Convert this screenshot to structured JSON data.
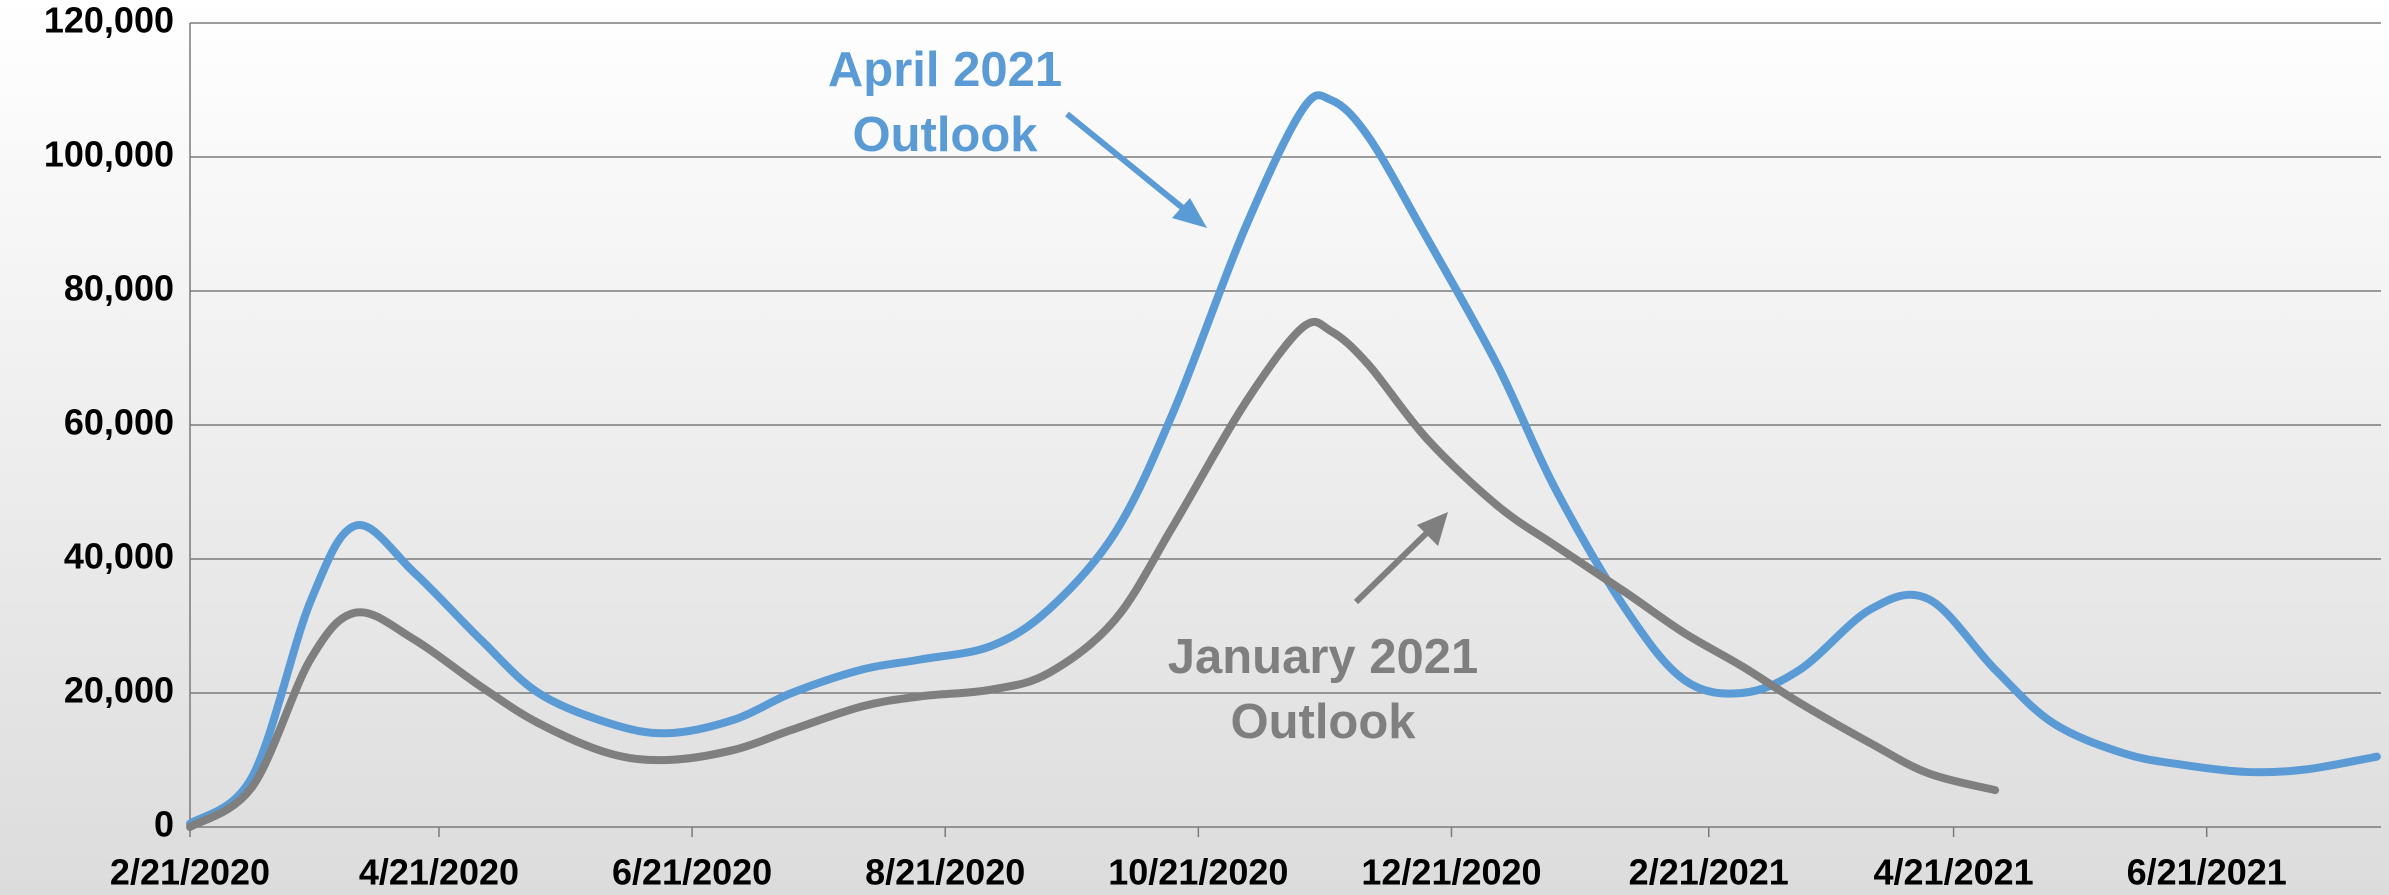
{
  "chart_data": {
    "type": "line",
    "x": [
      "2/21/2020",
      "3/7/2020",
      "3/21/2020",
      "4/1/2020",
      "4/15/2020",
      "5/1/2020",
      "5/15/2020",
      "6/1/2020",
      "6/15/2020",
      "7/1/2020",
      "7/15/2020",
      "8/1/2020",
      "8/15/2020",
      "9/1/2020",
      "9/15/2020",
      "10/1/2020",
      "10/15/2020",
      "11/1/2020",
      "11/15/2020",
      "11/22/2020",
      "12/1/2020",
      "12/15/2020",
      "1/1/2021",
      "1/15/2021",
      "2/1/2021",
      "2/15/2021",
      "3/1/2021",
      "3/15/2021",
      "4/1/2021",
      "4/15/2021",
      "5/1/2021",
      "5/15/2021",
      "6/1/2021",
      "6/15/2021",
      "7/1/2021",
      "7/15/2021",
      "8/1/2021"
    ],
    "series": [
      {
        "name": "April 2021 Outlook",
        "color": "#5b9bd5",
        "values": [
          500,
          7500,
          33600,
          45000,
          38000,
          28000,
          20000,
          15500,
          14000,
          16000,
          20000,
          23500,
          25000,
          27000,
          32500,
          44000,
          62000,
          89000,
          107000,
          108500,
          103000,
          88000,
          69000,
          50500,
          32500,
          22000,
          20000,
          23500,
          32500,
          34000,
          23500,
          15500,
          11000,
          9300,
          8200,
          8600,
          10500
        ]
      },
      {
        "name": "January 2021 Outlook",
        "color": "#7f7f7f",
        "values": [
          0,
          6000,
          25000,
          32000,
          28000,
          21000,
          15500,
          11000,
          10000,
          11500,
          14500,
          18000,
          19500,
          20500,
          23000,
          31000,
          45000,
          63000,
          74500,
          74000,
          69000,
          58000,
          48000,
          42000,
          35000,
          29000,
          24000,
          18500,
          12500,
          8000,
          5500,
          null,
          null,
          null,
          null,
          null,
          null
        ]
      }
    ],
    "annotations": [
      {
        "lines": [
          "April 2021",
          "Outlook"
        ],
        "color": "#5b9bd5"
      },
      {
        "lines": [
          "January 2021",
          "Outlook"
        ],
        "color": "#7f7f7f"
      }
    ],
    "xlim": [
      "2/21/2020",
      "8/2/2021"
    ],
    "xticks": [
      "2/21/2020",
      "4/21/2020",
      "6/21/2020",
      "8/21/2020",
      "10/21/2020",
      "12/21/2020",
      "2/21/2021",
      "4/21/2021",
      "6/21/2021"
    ],
    "ylim": [
      0,
      120000
    ],
    "yticks": [
      0,
      {
        "value": 20000,
        "label": "20,000"
      },
      {
        "value": 40000,
        "label": "40,000"
      },
      {
        "value": 60000,
        "label": "60,000"
      },
      {
        "value": 80000,
        "label": "80,000"
      },
      {
        "value": 100000,
        "label": "100,000"
      },
      {
        "value": 120000,
        "label": "120,000"
      }
    ],
    "grid": true
  }
}
